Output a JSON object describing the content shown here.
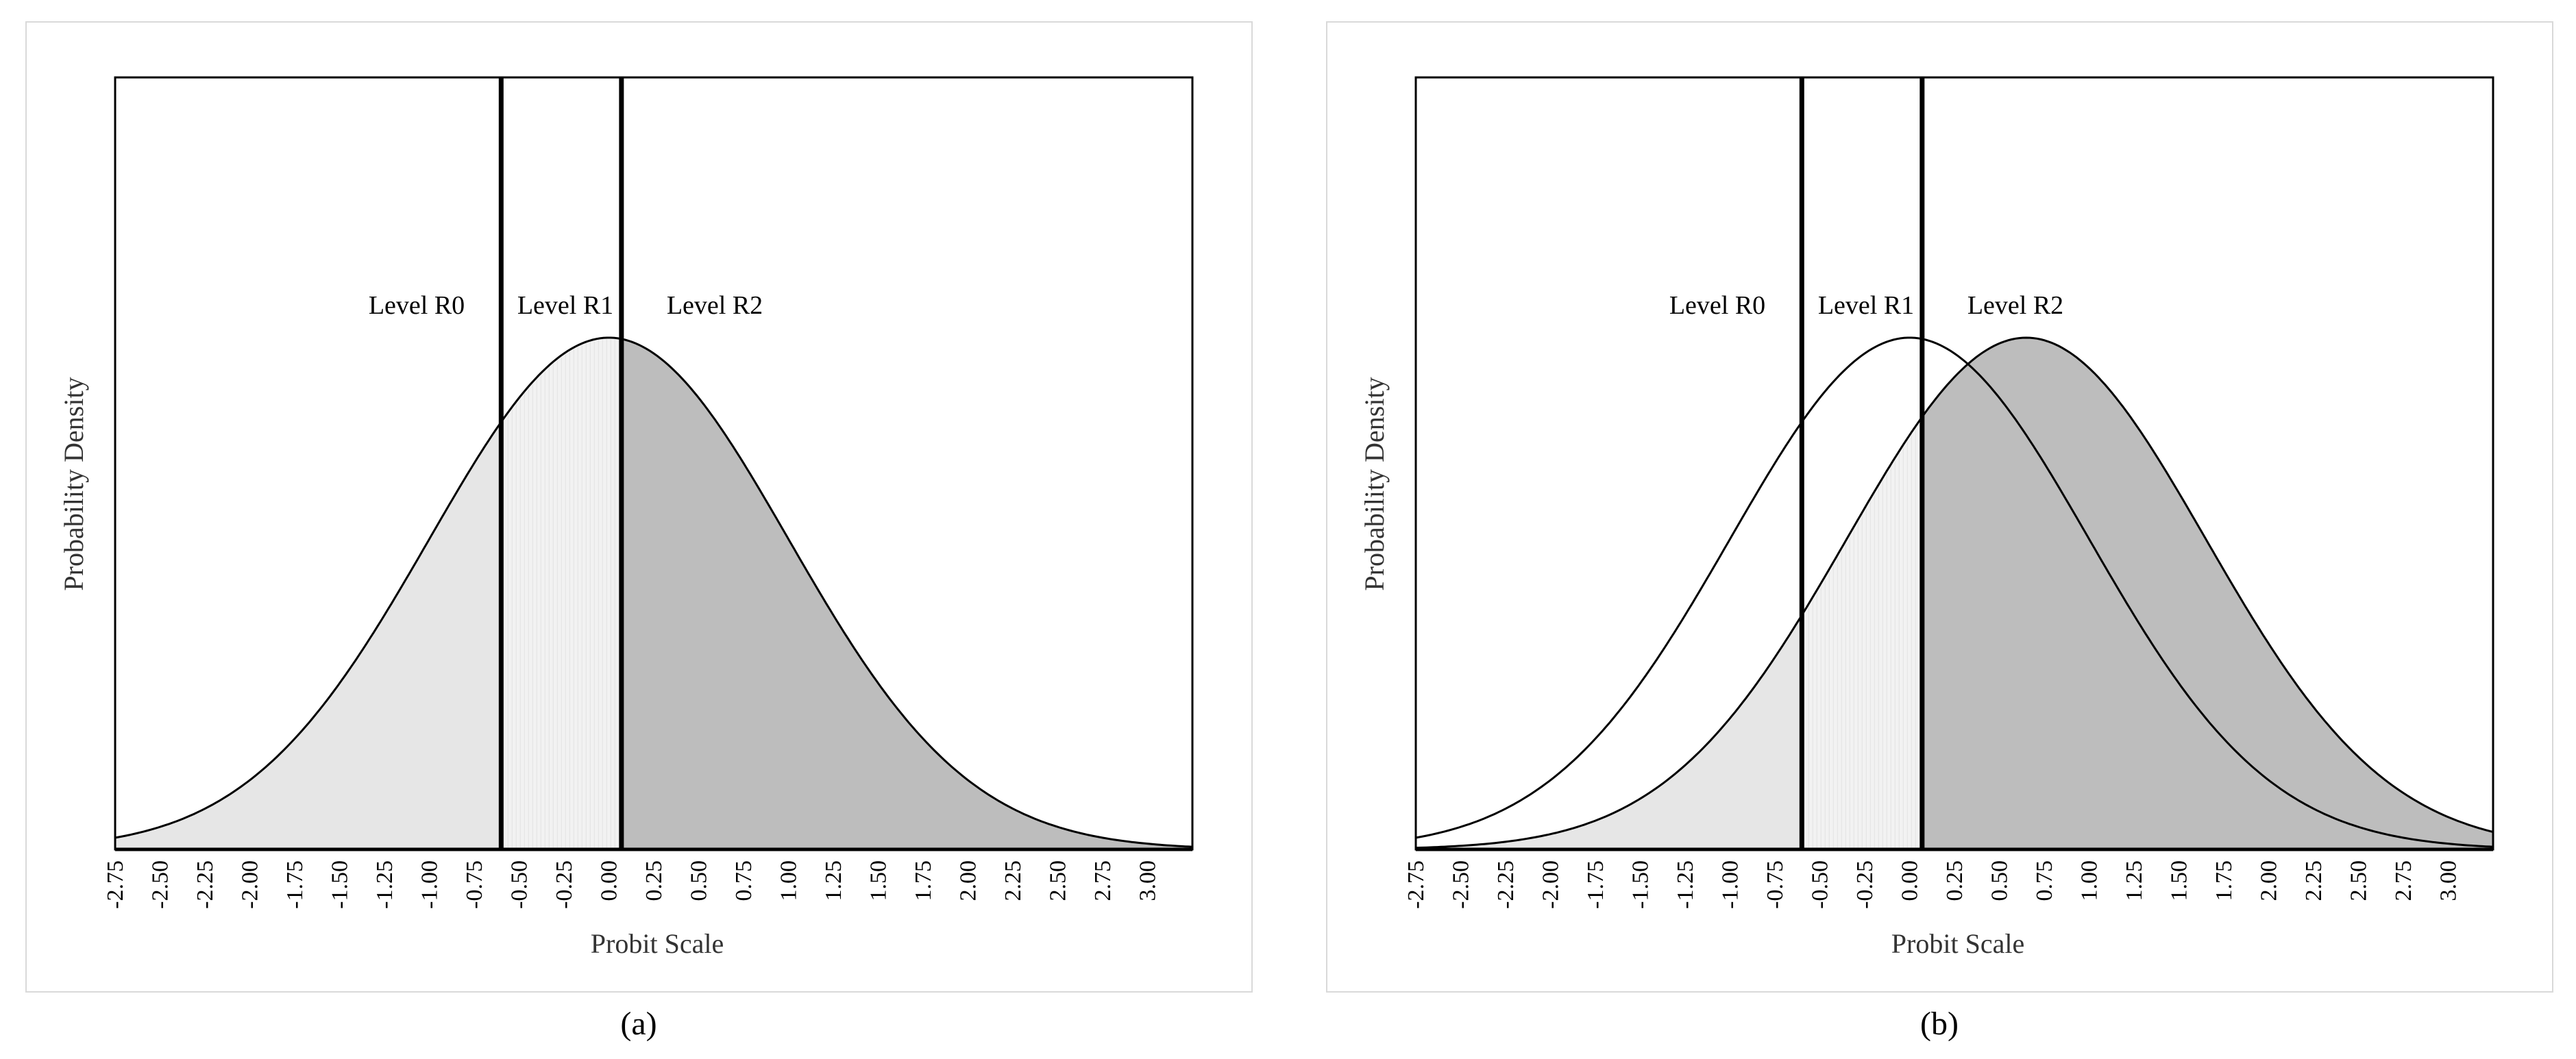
{
  "chart_data": [
    {
      "type": "area",
      "panel": "(a)",
      "xlabel": "Probit Scale",
      "ylabel": "Probability Density",
      "xlim": [
        -2.75,
        3.25
      ],
      "x_ticks": [
        -2.75,
        -2.5,
        -2.25,
        -2.0,
        -1.75,
        -1.5,
        -1.25,
        -1.0,
        -0.75,
        -0.5,
        -0.25,
        0.0,
        0.25,
        0.5,
        0.75,
        1.0,
        1.25,
        1.5,
        1.75,
        2.0,
        2.25,
        2.5,
        2.75,
        3.0
      ],
      "x_tick_labels": [
        "-2.75",
        "-2.50",
        "-2.25",
        "-2.00",
        "-1.75",
        "-1.50",
        "-1.25",
        "-1.00",
        "-0.75",
        "-0.50",
        "-0.25",
        "0.00",
        "0.25",
        "0.50",
        "0.75",
        "1.00",
        "1.25",
        "1.50",
        "1.75",
        "2.00",
        "2.25",
        "2.50",
        "2.75",
        "3.00"
      ],
      "thresholds": [
        -0.6,
        0.07
      ],
      "region_labels": [
        "Level R0",
        "Level R1",
        "Level R2"
      ],
      "series": [
        {
          "distribution": "normal",
          "mean": 0.0,
          "sd": 1.0,
          "shaded": true
        }
      ],
      "region_colors": [
        "#e6e6e6",
        "#f2f2f2",
        "#bdbdbd"
      ]
    },
    {
      "type": "area",
      "panel": "(b)",
      "xlabel": "Probit Scale",
      "ylabel": "Probability Density",
      "xlim": [
        -2.75,
        3.25
      ],
      "x_ticks": [
        -2.75,
        -2.5,
        -2.25,
        -2.0,
        -1.75,
        -1.5,
        -1.25,
        -1.0,
        -0.75,
        -0.5,
        -0.25,
        0.0,
        0.25,
        0.5,
        0.75,
        1.0,
        1.25,
        1.5,
        1.75,
        2.0,
        2.25,
        2.5,
        2.75,
        3.0
      ],
      "x_tick_labels": [
        "-2.75",
        "-2.50",
        "-2.25",
        "-2.00",
        "-1.75",
        "-1.50",
        "-1.25",
        "-1.00",
        "-0.75",
        "-0.50",
        "-0.25",
        "0.00",
        "0.25",
        "0.50",
        "0.75",
        "1.00",
        "1.25",
        "1.50",
        "1.75",
        "2.00",
        "2.25",
        "2.50",
        "2.75",
        "3.00"
      ],
      "thresholds": [
        -0.6,
        0.07
      ],
      "region_labels": [
        "Level R0",
        "Level R1",
        "Level R2"
      ],
      "series": [
        {
          "distribution": "normal",
          "mean": 0.0,
          "sd": 1.0,
          "shaded": false
        },
        {
          "distribution": "normal",
          "mean": 0.65,
          "sd": 1.0,
          "shaded": true
        }
      ],
      "region_colors": [
        "#e6e6e6",
        "#f2f2f2",
        "#bdbdbd"
      ]
    }
  ]
}
